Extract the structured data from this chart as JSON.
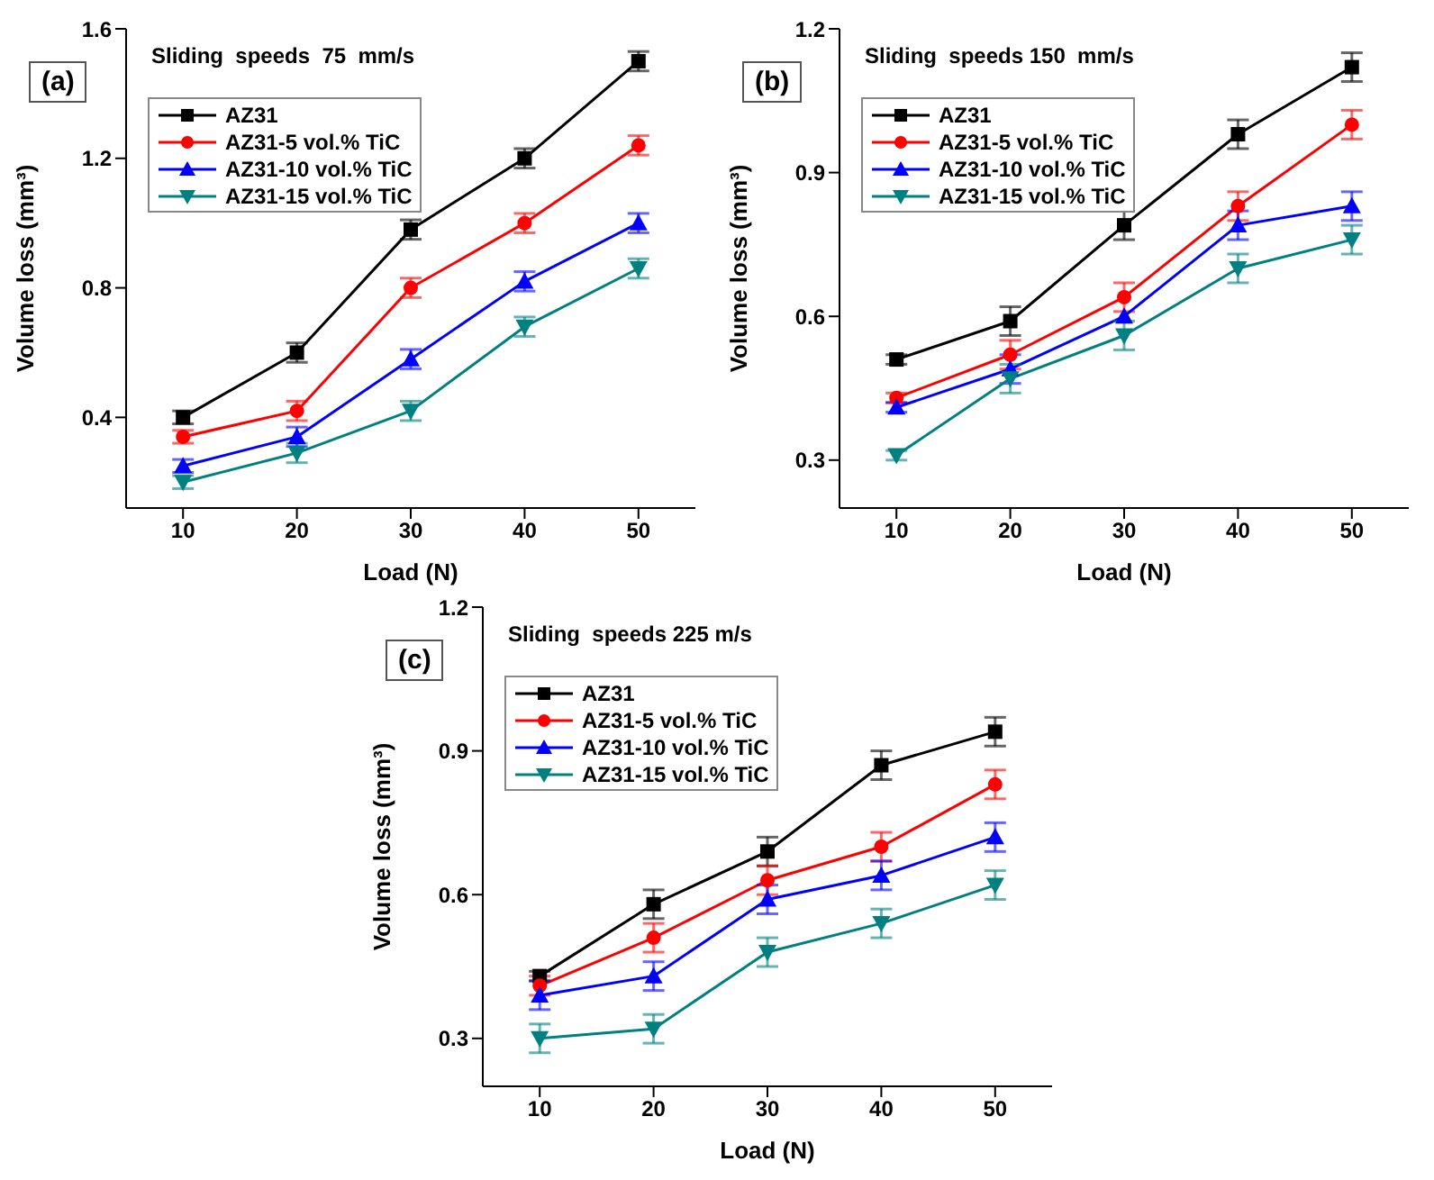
{
  "chart_data": [
    {
      "type": "line",
      "title": "Sliding  speeds  75  mm/s",
      "annotations": [
        "(a)"
      ],
      "xlabel": "Load (N)",
      "ylabel": "Volume loss (mm³)",
      "x": [
        10,
        20,
        30,
        40,
        50
      ],
      "xlim": [
        5,
        55
      ],
      "xticks": [
        10,
        20,
        30,
        40,
        50
      ],
      "ylim": [
        0.12,
        1.6
      ],
      "yticks": [
        0.4,
        0.8,
        1.2,
        1.6
      ],
      "legend": "top left",
      "series": [
        {
          "name": "AZ31",
          "color": "#000000",
          "marker": "square",
          "values": [
            0.4,
            0.6,
            0.98,
            1.2,
            1.5
          ],
          "errors": [
            0.02,
            0.03,
            0.03,
            0.03,
            0.03
          ]
        },
        {
          "name": "AZ31-5 vol.% TiC",
          "color": "#ff0000",
          "marker": "circle",
          "values": [
            0.34,
            0.42,
            0.8,
            1.0,
            1.24
          ],
          "errors": [
            0.02,
            0.03,
            0.03,
            0.03,
            0.03
          ]
        },
        {
          "name": "AZ31-10 vol.% TiC",
          "color": "#0000ff",
          "marker": "triangle",
          "values": [
            0.25,
            0.34,
            0.58,
            0.82,
            1.0
          ],
          "errors": [
            0.02,
            0.03,
            0.03,
            0.03,
            0.03
          ]
        },
        {
          "name": "AZ31-15 vol.% TiC",
          "color": "#008080",
          "marker": "triangle-down",
          "values": [
            0.2,
            0.29,
            0.42,
            0.68,
            0.86
          ],
          "errors": [
            0.02,
            0.03,
            0.03,
            0.03,
            0.03
          ]
        }
      ]
    },
    {
      "type": "line",
      "title": "Sliding  speeds 150  mm/s",
      "annotations": [
        "(b)"
      ],
      "xlabel": "Load (N)",
      "ylabel": "Volume loss (mm³)",
      "x": [
        10,
        20,
        30,
        40,
        50
      ],
      "xlim": [
        5,
        55
      ],
      "xticks": [
        10,
        20,
        30,
        40,
        50
      ],
      "ylim": [
        0.2,
        1.2
      ],
      "yticks": [
        0.3,
        0.6,
        0.9,
        1.2
      ],
      "legend": "top left",
      "series": [
        {
          "name": "AZ31",
          "color": "#000000",
          "marker": "square",
          "values": [
            0.51,
            0.59,
            0.79,
            0.98,
            1.12
          ],
          "errors": [
            0.01,
            0.03,
            0.03,
            0.03,
            0.03
          ]
        },
        {
          "name": "AZ31-5 vol.% TiC",
          "color": "#ff0000",
          "marker": "circle",
          "values": [
            0.43,
            0.52,
            0.64,
            0.83,
            1.0
          ],
          "errors": [
            0.01,
            0.03,
            0.03,
            0.03,
            0.03
          ]
        },
        {
          "name": "AZ31-10 vol.% TiC",
          "color": "#0000ff",
          "marker": "triangle",
          "values": [
            0.41,
            0.49,
            0.6,
            0.79,
            0.83
          ],
          "errors": [
            0.01,
            0.03,
            null,
            0.03,
            0.03
          ]
        },
        {
          "name": "AZ31-15 vol.% TiC",
          "color": "#008080",
          "marker": "triangle-down",
          "values": [
            0.31,
            0.47,
            0.56,
            0.7,
            0.76
          ],
          "errors": [
            0.01,
            0.03,
            0.03,
            0.03,
            0.03
          ]
        }
      ]
    },
    {
      "type": "line",
      "title": "Sliding  speeds 225 m/s",
      "annotations": [
        "(c)"
      ],
      "xlabel": "Load (N)",
      "ylabel": "Volume loss (mm³)",
      "x": [
        10,
        20,
        30,
        40,
        50
      ],
      "xlim": [
        5,
        55
      ],
      "xticks": [
        10,
        20,
        30,
        40,
        50
      ],
      "ylim": [
        0.2,
        1.2
      ],
      "yticks": [
        0.3,
        0.6,
        0.9,
        1.2
      ],
      "legend": "top left",
      "series": [
        {
          "name": "AZ31",
          "color": "#000000",
          "marker": "square",
          "values": [
            0.43,
            0.58,
            0.69,
            0.87,
            0.94
          ],
          "errors": [
            0.01,
            0.03,
            0.03,
            0.03,
            0.03
          ]
        },
        {
          "name": "AZ31-5 vol.% TiC",
          "color": "#ff0000",
          "marker": "circle",
          "values": [
            0.41,
            0.51,
            0.63,
            0.7,
            0.83
          ],
          "errors": [
            0.02,
            0.03,
            0.03,
            0.03,
            0.03
          ]
        },
        {
          "name": "AZ31-10 vol.% TiC",
          "color": "#0000ff",
          "marker": "triangle",
          "values": [
            0.39,
            0.43,
            0.59,
            0.64,
            0.72
          ],
          "errors": [
            0.03,
            0.03,
            0.03,
            0.03,
            0.03
          ]
        },
        {
          "name": "AZ31-15 vol.% TiC",
          "color": "#008080",
          "marker": "triangle-down",
          "values": [
            0.3,
            0.32,
            0.48,
            0.54,
            0.62
          ],
          "errors": [
            0.03,
            0.03,
            0.03,
            0.03,
            0.03
          ]
        }
      ]
    }
  ]
}
